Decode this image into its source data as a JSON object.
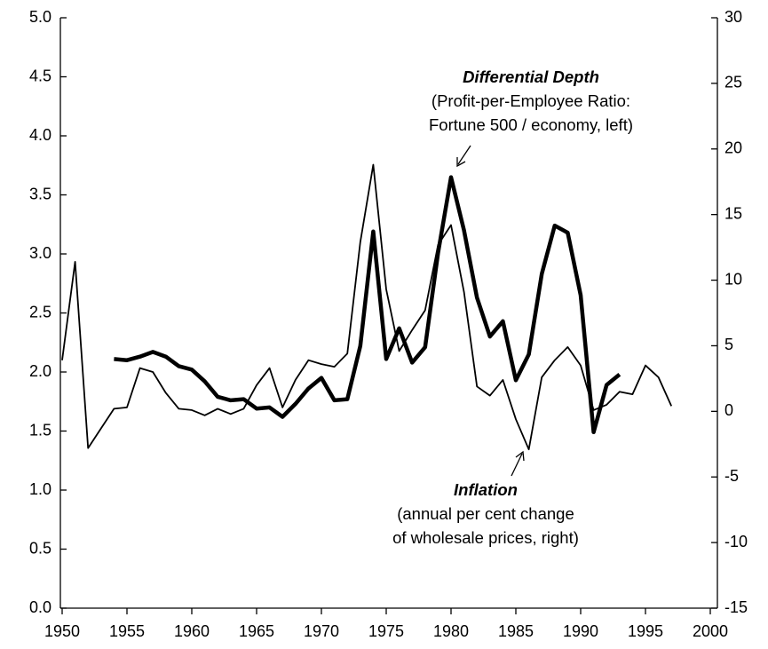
{
  "chart_data": {
    "type": "line",
    "xlim": [
      1950,
      2000
    ],
    "xticks": [
      1950,
      1955,
      1960,
      1965,
      1970,
      1975,
      1980,
      1985,
      1990,
      1995,
      2000
    ],
    "ylim": [
      0,
      5
    ],
    "yticks": [
      {
        "value": 0,
        "label": "0.0"
      },
      0.5,
      {
        "value": 1,
        "label": "1.0"
      },
      1.5,
      {
        "value": 2,
        "label": "2.0"
      },
      2.5,
      {
        "value": 3,
        "label": "3.0"
      },
      3.5,
      {
        "value": 4,
        "label": "4.0"
      },
      4.5,
      {
        "value": 5,
        "label": "5.0"
      }
    ],
    "y2lim": [
      -15,
      30
    ],
    "y2ticks": [
      -15,
      -10,
      -5,
      0,
      5,
      10,
      15,
      20,
      25,
      30
    ],
    "series": [
      {
        "name": "Differential Depth",
        "description": [
          "(Profit-per-Employee Ratio:",
          "Fortune 500 / economy, left)"
        ],
        "color": "#000000",
        "width": 4.5,
        "axis": "y",
        "x": [
          1954,
          1955,
          1956,
          1957,
          1958,
          1959,
          1960,
          1961,
          1962,
          1963,
          1964,
          1965,
          1966,
          1967,
          1968,
          1969,
          1970,
          1971,
          1972,
          1973,
          1974,
          1975,
          1976,
          1977,
          1978,
          1979,
          1980,
          1981,
          1982,
          1983,
          1984,
          1985,
          1986,
          1987,
          1988,
          1989,
          1990,
          1991,
          1992,
          1993
        ],
        "values": [
          2.11,
          2.1,
          2.13,
          2.17,
          2.13,
          2.05,
          2.02,
          1.92,
          1.79,
          1.76,
          1.77,
          1.69,
          1.7,
          1.62,
          1.73,
          1.86,
          1.95,
          1.76,
          1.77,
          2.22,
          3.19,
          2.11,
          2.37,
          2.08,
          2.21,
          3.01,
          3.65,
          3.2,
          2.63,
          2.3,
          2.43,
          1.93,
          2.15,
          2.83,
          3.24,
          3.18,
          2.65,
          1.49,
          1.89,
          1.98
        ]
      },
      {
        "name": "Inflation",
        "description": [
          "(annual per cent change",
          "of wholesale prices, right)"
        ],
        "color": "#000000",
        "width": 1.8,
        "axis": "y2",
        "x": [
          1950,
          1951,
          1952,
          1953,
          1954,
          1955,
          1956,
          1957,
          1958,
          1959,
          1960,
          1961,
          1962,
          1963,
          1964,
          1965,
          1966,
          1967,
          1968,
          1969,
          1970,
          1971,
          1972,
          1973,
          1974,
          1975,
          1976,
          1977,
          1978,
          1979,
          1980,
          1981,
          1982,
          1983,
          1984,
          1985,
          1986,
          1987,
          1988,
          1989,
          1990,
          1991,
          1992,
          1993,
          1994,
          1995,
          1996,
          1997
        ],
        "values": [
          3.9,
          11.4,
          -2.8,
          -1.3,
          0.2,
          0.3,
          3.3,
          3.0,
          1.4,
          0.2,
          0.1,
          -0.3,
          0.2,
          -0.2,
          0.2,
          2.0,
          3.3,
          0.3,
          2.4,
          3.9,
          3.6,
          3.4,
          4.4,
          12.9,
          18.8,
          9.3,
          4.6,
          6.2,
          7.7,
          12.7,
          14.2,
          9.1,
          1.9,
          1.2,
          2.4,
          -0.6,
          -2.9,
          2.6,
          3.9,
          4.9,
          3.5,
          0.1,
          0.5,
          1.5,
          1.3,
          3.5,
          2.6,
          0.4
        ]
      }
    ]
  }
}
